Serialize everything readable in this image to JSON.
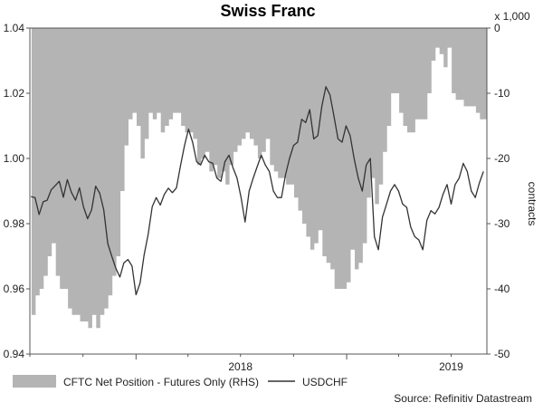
{
  "chart_data": {
    "type": "area+line",
    "title": "Swiss Franc",
    "source": "Source: Refinitiv Datastream",
    "left_axis": {
      "ylim": [
        0.94,
        1.04
      ],
      "ticks": [
        "1.04",
        "1.02",
        "1.00",
        "0.98",
        "0.96",
        "0.94"
      ]
    },
    "right_axis": {
      "ylim": [
        -50,
        0
      ],
      "ticks": [
        "0",
        "-10",
        "-20",
        "-30",
        "-40",
        "-50"
      ],
      "multiplier_label": "x 1,000",
      "label": "contracts"
    },
    "x_axis": {
      "range": [
        "2017-07",
        "2019-09"
      ],
      "tick_labels": [
        "2018",
        "2019"
      ]
    },
    "legend_position": "bottom",
    "series": [
      {
        "name": "CFTC Net Position - Futures Only (RHS)",
        "kind": "area",
        "axis": "right",
        "color": "#b4b4b4",
        "x": [
          "2017-07-04",
          "2017-07-11",
          "2017-07-18",
          "2017-07-25",
          "2017-08-01",
          "2017-08-08",
          "2017-08-15",
          "2017-08-22",
          "2017-08-29",
          "2017-09-05",
          "2017-09-12",
          "2017-09-19",
          "2017-09-26",
          "2017-10-03",
          "2017-10-10",
          "2017-10-17",
          "2017-10-24",
          "2017-10-31",
          "2017-11-07",
          "2017-11-14",
          "2017-11-21",
          "2017-11-28",
          "2017-12-05",
          "2017-12-12",
          "2017-12-19",
          "2017-12-26",
          "2018-01-02",
          "2018-01-09",
          "2018-01-16",
          "2018-01-23",
          "2018-01-30",
          "2018-02-06",
          "2018-02-13",
          "2018-02-20",
          "2018-02-27",
          "2018-03-06",
          "2018-03-13",
          "2018-03-20",
          "2018-03-27",
          "2018-04-03",
          "2018-04-10",
          "2018-04-17",
          "2018-04-24",
          "2018-05-01",
          "2018-05-08",
          "2018-05-15",
          "2018-05-22",
          "2018-05-29",
          "2018-06-05",
          "2018-06-12",
          "2018-06-19",
          "2018-06-26",
          "2018-07-03",
          "2018-07-10",
          "2018-07-17",
          "2018-07-24",
          "2018-07-31",
          "2018-08-07",
          "2018-08-14",
          "2018-08-21",
          "2018-08-28",
          "2018-09-04",
          "2018-09-11",
          "2018-09-18",
          "2018-09-25",
          "2018-10-02",
          "2018-10-09",
          "2018-10-16",
          "2018-10-23",
          "2018-10-30",
          "2018-11-06",
          "2018-11-13",
          "2018-11-20",
          "2018-11-27",
          "2018-12-04",
          "2018-12-11",
          "2018-12-18",
          "2018-12-25",
          "2019-01-01",
          "2019-01-08",
          "2019-01-15",
          "2019-01-22",
          "2019-01-29",
          "2019-02-05",
          "2019-02-12",
          "2019-02-19",
          "2019-02-26",
          "2019-03-05",
          "2019-03-12",
          "2019-03-19",
          "2019-03-26",
          "2019-04-02",
          "2019-04-09",
          "2019-04-16",
          "2019-04-23",
          "2019-04-30",
          "2019-05-07",
          "2019-05-14",
          "2019-05-21",
          "2019-05-28",
          "2019-06-04",
          "2019-06-11",
          "2019-06-18",
          "2019-06-25",
          "2019-07-02",
          "2019-07-09",
          "2019-07-16",
          "2019-07-23",
          "2019-07-30",
          "2019-08-06",
          "2019-08-13",
          "2019-08-20",
          "2019-08-27"
        ],
        "values": [
          -44,
          -41,
          -40,
          -38,
          -35,
          -33,
          -38,
          -40,
          -40,
          -43,
          -44,
          -44,
          -45,
          -45,
          -46,
          -44,
          -46,
          -44,
          -43,
          -41,
          -38,
          -35,
          -25,
          -18,
          -14,
          -13,
          -15,
          -20,
          -17,
          -13,
          -14,
          -13,
          -16,
          -15,
          -14,
          -13,
          -13,
          -15,
          -16,
          -16,
          -17,
          -21,
          -20,
          -19,
          -22,
          -21,
          -23,
          -22,
          -24,
          -21,
          -19,
          -18,
          -17,
          -16,
          -17,
          -18,
          -20,
          -19,
          -17,
          -21,
          -22,
          -23,
          -23,
          -24,
          -24,
          -26,
          -28,
          -30,
          -32,
          -34,
          -33,
          -31,
          -35,
          -36,
          -37,
          -40,
          -40,
          -40,
          -39,
          -34,
          -37,
          -36,
          -33,
          -26,
          -23,
          -27,
          -24,
          -19,
          -15,
          -10,
          -10,
          -13,
          -15,
          -16,
          -16,
          -14,
          -14,
          -14,
          -10,
          -5,
          -3,
          -4,
          -6,
          -3,
          -10,
          -11,
          -11,
          -12,
          -12,
          -12,
          -13,
          -14,
          -14
        ]
      },
      {
        "name": "USDCHF",
        "kind": "line",
        "axis": "left",
        "color": "#333333",
        "x": [
          "2017-07-03",
          "2017-07-10",
          "2017-07-17",
          "2017-07-24",
          "2017-07-31",
          "2017-08-07",
          "2017-08-14",
          "2017-08-21",
          "2017-08-28",
          "2017-09-04",
          "2017-09-11",
          "2017-09-18",
          "2017-09-25",
          "2017-10-02",
          "2017-10-09",
          "2017-10-16",
          "2017-10-23",
          "2017-10-30",
          "2017-11-06",
          "2017-11-13",
          "2017-11-20",
          "2017-11-27",
          "2017-12-04",
          "2017-12-11",
          "2017-12-18",
          "2017-12-25",
          "2018-01-01",
          "2018-01-08",
          "2018-01-15",
          "2018-01-22",
          "2018-01-29",
          "2018-02-05",
          "2018-02-12",
          "2018-02-19",
          "2018-02-26",
          "2018-03-05",
          "2018-03-12",
          "2018-03-19",
          "2018-03-26",
          "2018-04-02",
          "2018-04-09",
          "2018-04-16",
          "2018-04-23",
          "2018-04-30",
          "2018-05-07",
          "2018-05-14",
          "2018-05-21",
          "2018-05-28",
          "2018-06-04",
          "2018-06-11",
          "2018-06-18",
          "2018-06-25",
          "2018-07-02",
          "2018-07-09",
          "2018-07-16",
          "2018-07-23",
          "2018-07-30",
          "2018-08-06",
          "2018-08-13",
          "2018-08-20",
          "2018-08-27",
          "2018-09-03",
          "2018-09-10",
          "2018-09-17",
          "2018-09-24",
          "2018-10-01",
          "2018-10-08",
          "2018-10-15",
          "2018-10-22",
          "2018-10-29",
          "2018-11-05",
          "2018-11-12",
          "2018-11-19",
          "2018-11-26",
          "2018-12-03",
          "2018-12-10",
          "2018-12-17",
          "2018-12-24",
          "2018-12-31",
          "2019-01-07",
          "2019-01-14",
          "2019-01-21",
          "2019-01-28",
          "2019-02-04",
          "2019-02-11",
          "2019-02-18",
          "2019-02-25",
          "2019-03-04",
          "2019-03-11",
          "2019-03-18",
          "2019-03-25",
          "2019-04-01",
          "2019-04-08",
          "2019-04-15",
          "2019-04-22",
          "2019-04-29",
          "2019-05-06",
          "2019-05-13",
          "2019-05-20",
          "2019-05-27",
          "2019-06-03",
          "2019-06-10",
          "2019-06-17",
          "2019-06-24",
          "2019-07-01",
          "2019-07-08",
          "2019-07-15",
          "2019-07-22",
          "2019-07-29",
          "2019-08-05",
          "2019-08-12",
          "2019-08-19",
          "2019-08-26"
        ],
        "values": [
          0.9883,
          0.988,
          0.9828,
          0.9867,
          0.9872,
          0.9904,
          0.9917,
          0.993,
          0.9881,
          0.9935,
          0.9896,
          0.9872,
          0.991,
          0.9851,
          0.9815,
          0.9842,
          0.9915,
          0.9893,
          0.9843,
          0.9739,
          0.97,
          0.9663,
          0.9636,
          0.968,
          0.969,
          0.967,
          0.9582,
          0.9618,
          0.9705,
          0.9767,
          0.9852,
          0.988,
          0.9857,
          0.989,
          0.9909,
          0.9895,
          0.991,
          0.9977,
          1.004,
          1.009,
          1.005,
          0.999,
          0.998,
          1.001,
          0.999,
          0.9985,
          0.994,
          0.993,
          0.999,
          1.001,
          0.9972,
          0.994,
          0.988,
          0.9805,
          0.99,
          0.994,
          0.9975,
          1.001,
          0.998,
          0.996,
          0.99,
          0.988,
          0.988,
          0.995,
          1.0,
          1.004,
          1.005,
          1.012,
          1.011,
          1.015,
          1.006,
          1.007,
          1.016,
          1.022,
          1.0195,
          1.013,
          1.006,
          1.005,
          1.01,
          1.007,
          1.0,
          0.994,
          0.99,
          0.998,
          1.0,
          0.976,
          0.972,
          0.982,
          0.986,
          0.99,
          0.992,
          0.99,
          0.986,
          0.985,
          0.979,
          0.976,
          0.975,
          0.972,
          0.981,
          0.984,
          0.983,
          0.985,
          0.989,
          0.992,
          0.986,
          0.992,
          0.994,
          0.9985,
          0.996,
          0.99,
          0.988,
          0.9925,
          0.996
        ]
      }
    ]
  },
  "legend": {
    "area_label": "CFTC Net Position - Futures Only (RHS)",
    "line_label": "USDCHF"
  }
}
